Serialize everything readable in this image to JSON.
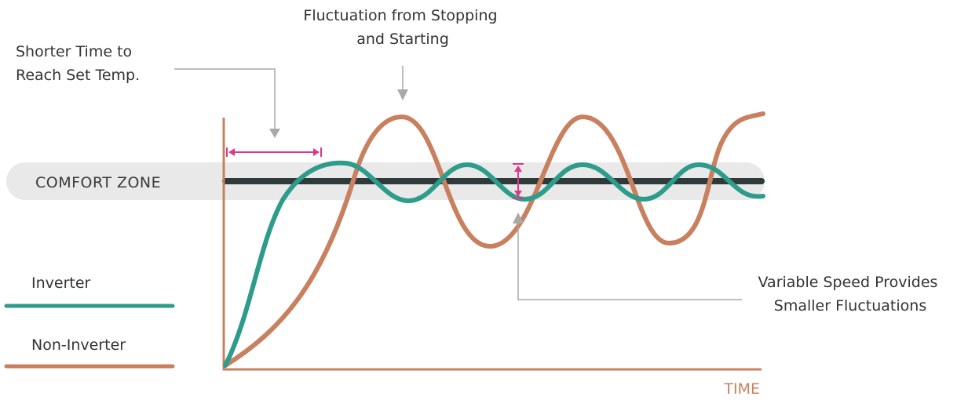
{
  "zone": {
    "label": "COMFORT ZONE"
  },
  "axis": {
    "x_label": "TIME"
  },
  "legend": {
    "items": [
      {
        "label": "Inverter",
        "color": "#2e9c8a"
      },
      {
        "label": "Non-Inverter",
        "color": "#c8805f"
      }
    ]
  },
  "annotations": {
    "shorter_time": [
      "Shorter Time to",
      "Reach Set Temp."
    ],
    "fluctuation": [
      "Fluctuation from Stopping",
      "and Starting"
    ],
    "variable_speed": [
      "Variable Speed Provides",
      "Smaller Fluctuations"
    ]
  },
  "colors": {
    "inverter": "#2e9c8a",
    "non_inverter": "#c8805f",
    "setpoint": "#2f3a3a",
    "zone_band": "#e9e9e9",
    "marker": "#e0358b",
    "pointer": "#a9a9a9",
    "axis_label": "#c8805f"
  }
}
